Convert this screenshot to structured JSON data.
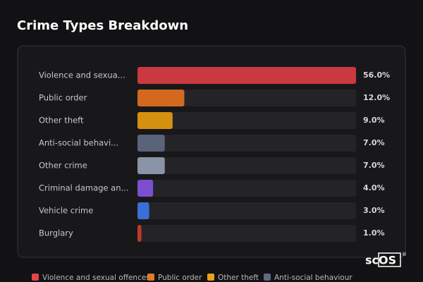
{
  "chart_data": {
    "type": "bar",
    "orientation": "horizontal",
    "title": "Crime Types Breakdown",
    "categories": [
      "Violence and sexua...",
      "Public order",
      "Other theft",
      "Anti-social behavi...",
      "Other crime",
      "Criminal damage an...",
      "Vehicle crime",
      "Burglary"
    ],
    "values": [
      56.0,
      12.0,
      9.0,
      7.0,
      7.0,
      4.0,
      3.0,
      1.0
    ],
    "value_labels": [
      "56.0%",
      "12.0%",
      "9.0%",
      "7.0%",
      "7.0%",
      "4.0%",
      "3.0%",
      "1.0%"
    ],
    "colors": [
      "#c9393f",
      "#d2691e",
      "#d4900f",
      "#5a6478",
      "#8a94a6",
      "#7b4fd0",
      "#3a6fd8",
      "#c0392b"
    ],
    "legend": [
      {
        "name": "Violence and sexual offences",
        "color": "#e0454a"
      },
      {
        "name": "Public order",
        "color": "#e07b25"
      },
      {
        "name": "Other theft",
        "color": "#e8a21a"
      },
      {
        "name": "Anti-social behaviour",
        "color": "#5d6a80"
      }
    ]
  },
  "watermark": "scOS",
  "watermark_mark": "®"
}
